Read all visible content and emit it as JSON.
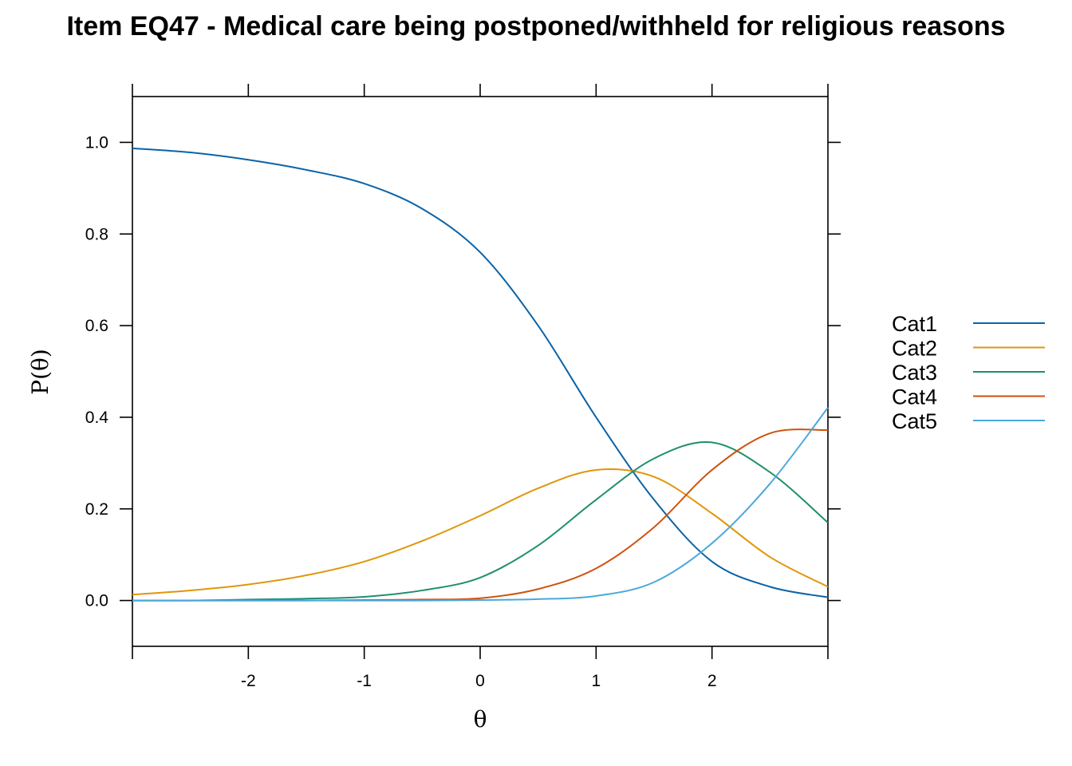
{
  "chart_data": {
    "type": "line",
    "title": "Item EQ47 - Medical care being postponed/withheld for religious reasons",
    "xlabel": "θ",
    "ylabel": "P(θ)",
    "xlim": [
      -3,
      3
    ],
    "ylim": [
      -0.1,
      1.1
    ],
    "x_ticks": [
      -2,
      -1,
      0,
      1,
      2
    ],
    "x_tick_labels": [
      "-2",
      "-1",
      "0",
      "1",
      "2"
    ],
    "y_ticks": [
      0.0,
      0.2,
      0.4,
      0.6,
      0.8,
      1.0
    ],
    "y_tick_labels": [
      "0.0",
      "0.2",
      "0.4",
      "0.6",
      "0.8",
      "1.0"
    ],
    "grid": false,
    "legend_position": "right",
    "x": [
      -3,
      -2.5,
      -2,
      -1.5,
      -1,
      -0.5,
      0,
      0.5,
      1,
      1.5,
      2,
      2.5,
      3
    ],
    "series": [
      {
        "name": "Cat1",
        "color": "#0a63a8",
        "values": [
          0.987,
          0.978,
          0.962,
          0.94,
          0.91,
          0.855,
          0.76,
          0.6,
          0.4,
          0.22,
          0.085,
          0.03,
          0.007
        ]
      },
      {
        "name": "Cat2",
        "color": "#e0960a",
        "values": [
          0.013,
          0.022,
          0.035,
          0.055,
          0.085,
          0.13,
          0.185,
          0.245,
          0.285,
          0.27,
          0.19,
          0.095,
          0.03
        ]
      },
      {
        "name": "Cat3",
        "color": "#1e8f6e",
        "values": [
          0.0,
          0.0,
          0.002,
          0.004,
          0.008,
          0.022,
          0.05,
          0.12,
          0.22,
          0.31,
          0.345,
          0.28,
          0.17
        ]
      },
      {
        "name": "Cat4",
        "color": "#cf520f",
        "values": [
          0.0,
          0.0,
          0.0,
          0.0,
          0.001,
          0.002,
          0.005,
          0.025,
          0.07,
          0.16,
          0.285,
          0.365,
          0.372
        ]
      },
      {
        "name": "Cat5",
        "color": "#4aa8dc",
        "values": [
          0.0,
          0.0,
          0.0,
          0.0,
          0.0,
          0.0,
          0.001,
          0.003,
          0.01,
          0.04,
          0.125,
          0.255,
          0.421
        ]
      }
    ]
  }
}
